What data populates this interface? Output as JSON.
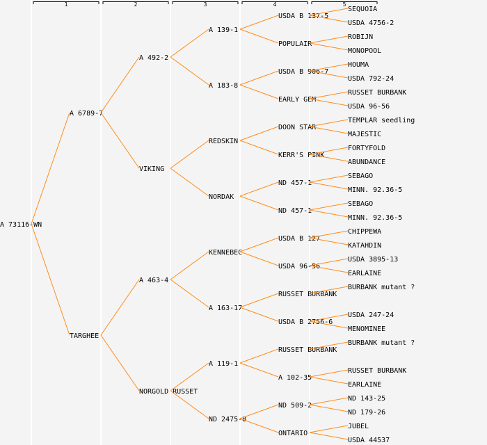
{
  "columns": [
    "1",
    "2",
    "3",
    "4",
    "5"
  ],
  "colors": {
    "line": "#ff8c1a",
    "highlight": "#0000ff",
    "text": "#000000",
    "background": "#f4f4f4",
    "separator": "#ffffff"
  },
  "tree": {
    "name": "A 73116-WN",
    "parents": [
      {
        "name": "A 6789-7",
        "parents": [
          {
            "name": "A 492-2",
            "parents": [
              {
                "name": "A 139-1",
                "parents": [
                  {
                    "name": "USDA B 137-5",
                    "parents": [
                      {
                        "name": "SEQUOIA"
                      },
                      {
                        "name": "USDA 4756-2"
                      }
                    ]
                  },
                  {
                    "name": "POPULAIR",
                    "parents": [
                      {
                        "name": "ROBIJN"
                      },
                      {
                        "name": "MONOPOOL"
                      }
                    ]
                  }
                ]
              },
              {
                "name": "A 183-8",
                "parents": [
                  {
                    "name": "USDA B 906-7",
                    "parents": [
                      {
                        "name": "HOUMA"
                      },
                      {
                        "name": "USDA 792-24"
                      }
                    ]
                  },
                  {
                    "name": "EARLY GEM",
                    "highlight": true,
                    "parents": [
                      {
                        "name": "RUSSET BURBANK"
                      },
                      {
                        "name": "USDA 96-56"
                      }
                    ]
                  }
                ]
              }
            ]
          },
          {
            "name": "VIKING",
            "parents": [
              {
                "name": "REDSKIN",
                "highlight": true,
                "parents": [
                  {
                    "name": "DOON STAR",
                    "parents": [
                      {
                        "name": "TEMPLAR seedling"
                      },
                      {
                        "name": "MAJESTIC"
                      }
                    ]
                  },
                  {
                    "name": "KERR'S PINK",
                    "parents": [
                      {
                        "name": "FORTYFOLD"
                      },
                      {
                        "name": "ABUNDANCE"
                      }
                    ]
                  }
                ]
              },
              {
                "name": "NORDAK",
                "parents": [
                  {
                    "name": "ND 457-1",
                    "parents": [
                      {
                        "name": "SEBAGO"
                      },
                      {
                        "name": "MINN. 92.36-5"
                      }
                    ]
                  },
                  {
                    "name": "ND 457-1",
                    "parents": [
                      {
                        "name": "SEBAGO"
                      },
                      {
                        "name": "MINN. 92.36-5"
                      }
                    ]
                  }
                ]
              }
            ]
          }
        ]
      },
      {
        "name": "TARGHEE",
        "parents": [
          {
            "name": "A 463-4",
            "parents": [
              {
                "name": "KENNEBEC",
                "parents": [
                  {
                    "name": "USDA B 127",
                    "parents": [
                      {
                        "name": "CHIPPEWA"
                      },
                      {
                        "name": "KATAHDIN"
                      }
                    ]
                  },
                  {
                    "name": "USDA 96-56",
                    "parents": [
                      {
                        "name": "USDA 3895-13"
                      },
                      {
                        "name": "EARLAINE"
                      }
                    ]
                  }
                ]
              },
              {
                "name": "A 163-17",
                "parents": [
                  {
                    "name": "RUSSET BURBANK",
                    "parents": [
                      {
                        "name": "BURBANK mutant ?"
                      },
                      null
                    ]
                  },
                  {
                    "name": "USDA B 2756-6",
                    "parents": [
                      {
                        "name": "USDA 247-24"
                      },
                      {
                        "name": "MENOMINEE"
                      }
                    ]
                  }
                ]
              }
            ]
          },
          {
            "name": "NORGOLD RUSSET",
            "parents": [
              {
                "name": "A 119-1",
                "parents": [
                  {
                    "name": "RUSSET BURBANK",
                    "parents": [
                      {
                        "name": "BURBANK mutant ?"
                      },
                      null
                    ]
                  },
                  {
                    "name": "A 102-35",
                    "parents": [
                      {
                        "name": "RUSSET BURBANK"
                      },
                      {
                        "name": "EARLAINE"
                      }
                    ]
                  }
                ]
              },
              {
                "name": "ND 2475-8",
                "parents": [
                  {
                    "name": "ND 509-2",
                    "parents": [
                      {
                        "name": "ND 143-25"
                      },
                      {
                        "name": "ND 179-26"
                      }
                    ]
                  },
                  {
                    "name": "ONTARIO",
                    "parents": [
                      {
                        "name": "JUBEL"
                      },
                      {
                        "name": "USDA 44537"
                      }
                    ]
                  }
                ]
              }
            ]
          }
        ]
      }
    ]
  }
}
